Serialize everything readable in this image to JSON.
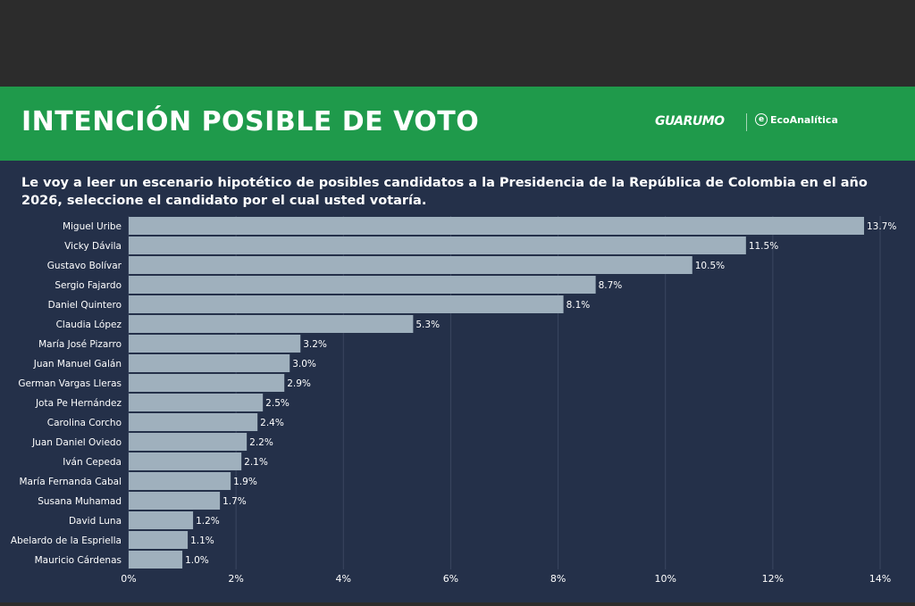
{
  "header": {
    "title": "INTENCIÓN POSIBLE DE VOTO",
    "brand_primary": "GUARUMO",
    "brand_secondary": "EcoAnalítica",
    "accent_color": "#1f9a4b"
  },
  "question": "Le voy a leer un escenario hipotético de posibles candidatos a la Presidencia de la República de Colombia en el año 2026, seleccione el candidato por el cual usted votaría.",
  "colors": {
    "background": "#243049",
    "bar": "#9fb0bd",
    "text": "#ffffff",
    "grid": "#3a4660"
  },
  "chart_data": {
    "type": "bar",
    "orientation": "horizontal",
    "categories": [
      "Miguel Uribe",
      "Vicky Dávila",
      "Gustavo Bolívar",
      "Sergio Fajardo",
      "Daniel Quintero",
      "Claudia López",
      "María José Pizarro",
      "Juan Manuel Galán",
      "German Vargas Lleras",
      "Jota Pe Hernández",
      "Carolina Corcho",
      "Juan Daniel Oviedo",
      "Iván Cepeda",
      "María Fernanda Cabal",
      "Susana Muhamad",
      "David Luna",
      "Abelardo de la Espriella",
      "Mauricio Cárdenas"
    ],
    "values": [
      13.7,
      11.5,
      10.5,
      8.7,
      8.1,
      5.3,
      3.2,
      3.0,
      2.9,
      2.5,
      2.4,
      2.2,
      2.1,
      1.9,
      1.7,
      1.2,
      1.1,
      1.0
    ],
    "value_labels": [
      "13.7%",
      "11.5%",
      "10.5%",
      "8.7%",
      "8.1%",
      "5.3%",
      "3.2%",
      "3.0%",
      "2.9%",
      "2.5%",
      "2.4%",
      "2.2%",
      "2.1%",
      "1.9%",
      "1.7%",
      "1.2%",
      "1.1%",
      "1.0%"
    ],
    "xlim": [
      0,
      14
    ],
    "xticks": [
      0,
      2,
      4,
      6,
      8,
      10,
      12,
      14
    ],
    "xtick_labels": [
      "0%",
      "2%",
      "4%",
      "6%",
      "8%",
      "10%",
      "12%",
      "14%"
    ],
    "grid": true
  }
}
